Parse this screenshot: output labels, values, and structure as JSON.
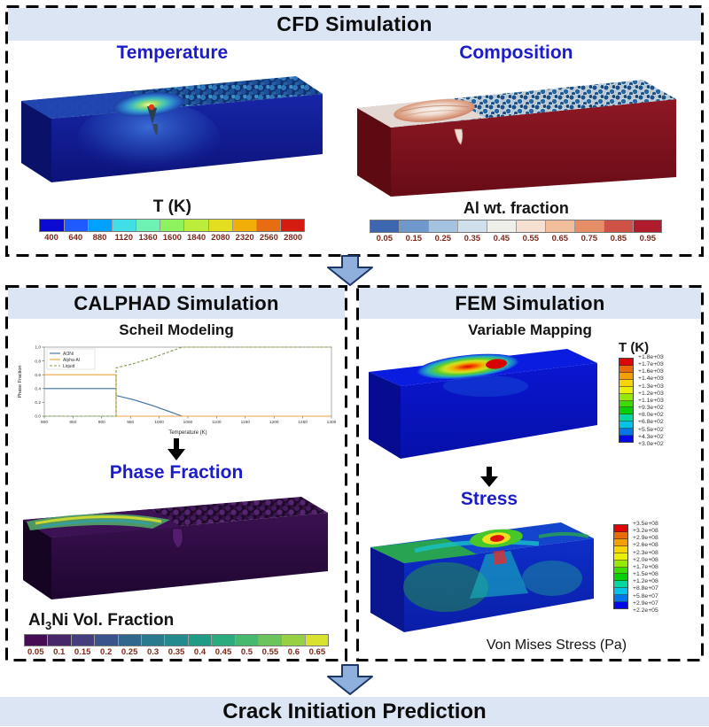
{
  "colors": {
    "heading_blue": "#1d1dc8",
    "panel_header_bg": "#dbe5f4",
    "footer_bg": "#dbe5f4",
    "big_arrow_fill": "#8fb0dd",
    "big_arrow_stroke": "#1c3668",
    "tick_text": "#7c2a1c"
  },
  "cfd": {
    "title": "CFD Simulation",
    "temperature": {
      "heading": "Temperature",
      "colorbar": {
        "title": "T (K)",
        "ticks": [
          "400",
          "640",
          "880",
          "1120",
          "1360",
          "1600",
          "1840",
          "2080",
          "2320",
          "2560",
          "2800"
        ],
        "segments": [
          "#0a0ad2",
          "#1e5aff",
          "#00a0ff",
          "#40dfe8",
          "#6ef2b4",
          "#8ef25e",
          "#bced3a",
          "#e4de20",
          "#f2ae08",
          "#e86c12",
          "#d41c10"
        ]
      }
    },
    "composition": {
      "heading": "Composition",
      "colorbar": {
        "title": "Al wt. fraction",
        "ticks": [
          "0.05",
          "0.15",
          "0.25",
          "0.35",
          "0.45",
          "0.55",
          "0.65",
          "0.75",
          "0.85",
          "0.95"
        ],
        "segments": [
          "#3c66b0",
          "#6f99cc",
          "#a3c3e0",
          "#cfdfeb",
          "#efefea",
          "#f6e0d2",
          "#f2bd9b",
          "#e58e67",
          "#ce5246",
          "#b01c2e"
        ]
      }
    }
  },
  "calphad": {
    "title": "CALPHAD Simulation",
    "scheil_title": "Scheil Modeling",
    "phase_fraction_heading": "Phase Fraction",
    "vol_title": {
      "pre": "Al",
      "sub": "3",
      "post": "Ni Vol. Fraction"
    },
    "vol_colorbar": {
      "ticks": [
        "0.05",
        "0.1",
        "0.15",
        "0.2",
        "0.25",
        "0.3",
        "0.35",
        "0.4",
        "0.45",
        "0.5",
        "0.55",
        "0.6",
        "0.65"
      ],
      "segments": [
        "#440d54",
        "#472769",
        "#433e7e",
        "#3b538b",
        "#32678d",
        "#2a7a8e",
        "#248a8d",
        "#209b86",
        "#2bab7e",
        "#46b96f",
        "#6cc45c",
        "#98d043",
        "#d8e22f"
      ]
    }
  },
  "fem": {
    "title": "FEM Simulation",
    "variable_mapping_heading": "Variable Mapping",
    "temperature_colorbar": {
      "title": "T (K)",
      "labels": [
        "+1.8e+03",
        "+1.7e+03",
        "+1.6e+03",
        "+1.4e+03",
        "+1.3e+03",
        "+1.2e+03",
        "+1.1e+03",
        "+9.3e+02",
        "+8.0e+02",
        "+6.8e+02",
        "+5.5e+02",
        "+4.3e+02",
        "+3.0e+02"
      ],
      "segments": [
        "#e00505",
        "#ea6a05",
        "#f2a005",
        "#f5d505",
        "#e9ef05",
        "#97e805",
        "#3cdc05",
        "#05d005",
        "#05d7a0",
        "#05c3e8",
        "#0576e8",
        "#0508e8"
      ]
    },
    "stress_heading": "Stress",
    "stress_colorbar": {
      "labels": [
        "+3.5e+08",
        "+3.2e+08",
        "+2.9e+08",
        "+2.6e+08",
        "+2.3e+08",
        "+2.0e+08",
        "+1.7e+08",
        "+1.5e+08",
        "+1.2e+08",
        "+8.8e+07",
        "+5.8e+07",
        "+2.9e+07",
        "+2.2e+05"
      ],
      "segments": [
        "#e00505",
        "#ea6a05",
        "#f2a005",
        "#f5d505",
        "#e9ef05",
        "#97e805",
        "#3cdc05",
        "#05d005",
        "#05d7a0",
        "#05c3e8",
        "#0576e8",
        "#0508e8"
      ]
    },
    "stress_caption": "Von Mises Stress (Pa)"
  },
  "footer": {
    "title": "Crack Initiation Prediction"
  },
  "chart_data": {
    "type": "line",
    "title": "Scheil Modeling",
    "xlabel": "Temperature (K)",
    "ylabel": "Phase Fraction",
    "xlim": [
      800,
      1300
    ],
    "ylim": [
      0,
      1
    ],
    "x_ticks": [
      800,
      850,
      900,
      950,
      1000,
      1050,
      1100,
      1150,
      1200,
      1250,
      1300
    ],
    "y_ticks": [
      0,
      0.2,
      0.4,
      0.6,
      0.8,
      1
    ],
    "grid": false,
    "legend_position": "upper-left",
    "series": [
      {
        "name": "Al3Ni",
        "color": "#3f6fa0",
        "dash": false,
        "points": [
          [
            800,
            0.4
          ],
          [
            925,
            0.4
          ],
          [
            925,
            0.3
          ],
          [
            955,
            0.24
          ],
          [
            990,
            0.15
          ],
          [
            1020,
            0.06
          ],
          [
            1040,
            0
          ],
          [
            1300,
            0
          ]
        ]
      },
      {
        "name": "Alpha-Al",
        "color": "#e8a33d",
        "dash": false,
        "points": [
          [
            800,
            0.6
          ],
          [
            925,
            0.6
          ],
          [
            925,
            0
          ],
          [
            1300,
            0
          ]
        ]
      },
      {
        "name": "Liquid",
        "color": "#7d9c4b",
        "dash": true,
        "points": [
          [
            800,
            0
          ],
          [
            925,
            0
          ],
          [
            925,
            0.7
          ],
          [
            955,
            0.76
          ],
          [
            990,
            0.85
          ],
          [
            1020,
            0.94
          ],
          [
            1040,
            1
          ],
          [
            1300,
            1
          ]
        ]
      }
    ]
  }
}
